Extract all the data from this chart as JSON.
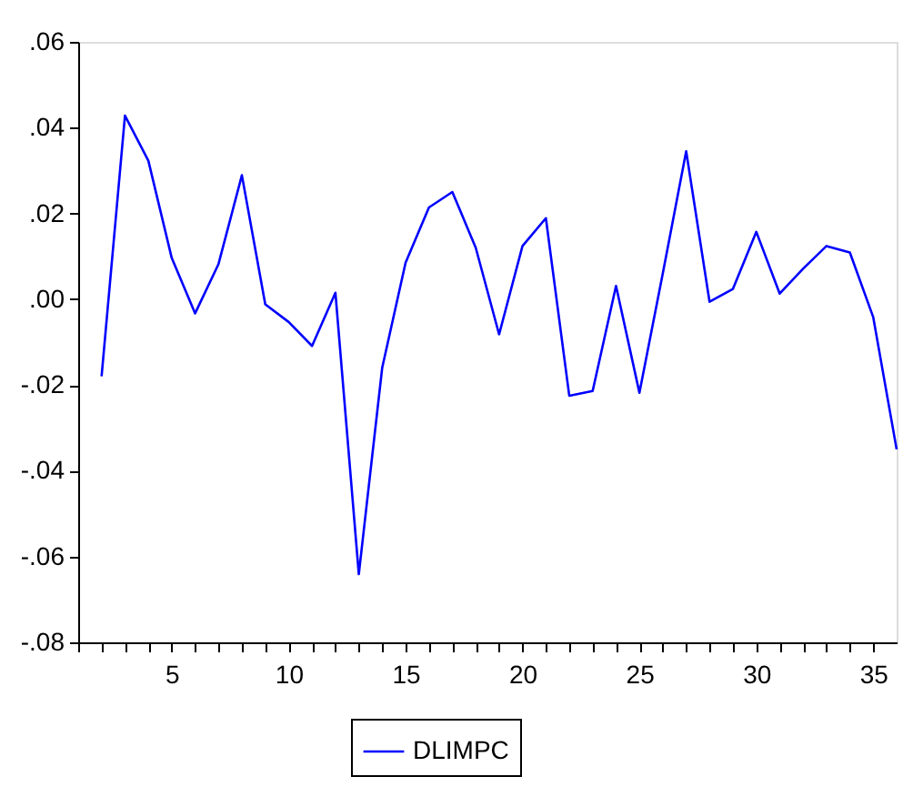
{
  "chart_data": {
    "type": "line",
    "x": [
      2,
      3,
      4,
      5,
      6,
      7,
      8,
      9,
      10,
      11,
      12,
      13,
      14,
      15,
      16,
      17,
      18,
      19,
      20,
      21,
      22,
      23,
      24,
      25,
      26,
      27,
      28,
      29,
      30,
      31,
      32,
      33,
      34,
      35,
      36
    ],
    "series": [
      {
        "name": "DLIMPC",
        "color": "#0000ff",
        "values": [
          -0.018,
          0.0428,
          0.0323,
          0.0096,
          -0.0033,
          0.0082,
          0.0289,
          -0.0012,
          -0.0053,
          -0.0109,
          0.0015,
          -0.0641,
          -0.016,
          0.0085,
          0.0214,
          0.025,
          0.012,
          -0.0082,
          0.0124,
          0.0189,
          -0.0225,
          -0.0214,
          0.0031,
          -0.0218,
          0.006,
          0.0345,
          -0.0006,
          0.0024,
          0.0157,
          0.0013,
          0.0071,
          0.0124,
          0.0109,
          -0.0042,
          -0.035
        ]
      }
    ],
    "xlim": [
      1,
      36
    ],
    "xticks": [
      {
        "value": 1,
        "label": null
      },
      {
        "value": 2,
        "label": null
      },
      {
        "value": 3,
        "label": null
      },
      {
        "value": 4,
        "label": null
      },
      5,
      {
        "value": 6,
        "label": null
      },
      {
        "value": 7,
        "label": null
      },
      {
        "value": 8,
        "label": null
      },
      {
        "value": 9,
        "label": null
      },
      10,
      {
        "value": 11,
        "label": null
      },
      {
        "value": 12,
        "label": null
      },
      {
        "value": 13,
        "label": null
      },
      {
        "value": 14,
        "label": null
      },
      15,
      {
        "value": 16,
        "label": null
      },
      {
        "value": 17,
        "label": null
      },
      {
        "value": 18,
        "label": null
      },
      {
        "value": 19,
        "label": null
      },
      20,
      {
        "value": 21,
        "label": null
      },
      {
        "value": 22,
        "label": null
      },
      {
        "value": 23,
        "label": null
      },
      {
        "value": 24,
        "label": null
      },
      25,
      {
        "value": 26,
        "label": null
      },
      {
        "value": 27,
        "label": null
      },
      {
        "value": 28,
        "label": null
      },
      {
        "value": 29,
        "label": null
      },
      30,
      {
        "value": 31,
        "label": null
      },
      {
        "value": 32,
        "label": null
      },
      {
        "value": 33,
        "label": null
      },
      {
        "value": 34,
        "label": null
      },
      35
    ],
    "ylim": [
      -0.08,
      0.06
    ],
    "yticks": [
      {
        "value": -0.08,
        "label": "-.08"
      },
      {
        "value": -0.06,
        "label": "-.06"
      },
      {
        "value": -0.04,
        "label": "-.04"
      },
      {
        "value": -0.02,
        "label": "-.02"
      },
      {
        "value": 0,
        "label": ".00"
      },
      {
        "value": 0.02,
        "label": ".02"
      },
      {
        "value": 0.04,
        "label": ".04"
      },
      {
        "value": 0.06,
        "label": ".06"
      }
    ],
    "grid": false,
    "legend": "bottom",
    "marker": "none",
    "line_style": "solid"
  }
}
